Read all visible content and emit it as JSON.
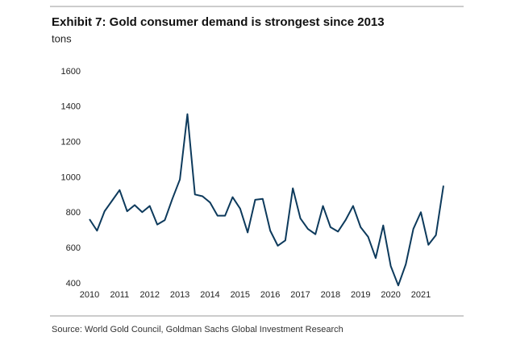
{
  "chart_data": {
    "type": "line",
    "title": "Exhibit 7: Gold consumer demand is strongest since 2013",
    "y_label": "tons",
    "source": "Source: World Gold Council, Goldman Sachs Global Investment Research",
    "x": [
      2010,
      2010.25,
      2010.5,
      2010.75,
      2011,
      2011.25,
      2011.5,
      2011.75,
      2012,
      2012.25,
      2012.5,
      2012.75,
      2013,
      2013.25,
      2013.5,
      2013.75,
      2014,
      2014.25,
      2014.5,
      2014.75,
      2015,
      2015.25,
      2015.5,
      2015.75,
      2016,
      2016.25,
      2016.5,
      2016.75,
      2017,
      2017.25,
      2017.5,
      2017.75,
      2018,
      2018.25,
      2018.5,
      2018.75,
      2019,
      2019.25,
      2019.5,
      2019.75,
      2020,
      2020.25,
      2020.5,
      2020.75,
      2021,
      2021.25,
      2021.5,
      2021.75
    ],
    "series": [
      {
        "name": "Gold consumer demand",
        "color": "#0d3a5c",
        "values": [
          765,
          700,
          810,
          870,
          930,
          810,
          845,
          805,
          840,
          735,
          760,
          880,
          990,
          1360,
          905,
          895,
          860,
          785,
          785,
          890,
          825,
          690,
          875,
          880,
          700,
          615,
          645,
          940,
          770,
          710,
          680,
          840,
          720,
          695,
          760,
          840,
          720,
          665,
          545,
          730,
          500,
          390,
          510,
          710,
          805,
          620,
          675,
          955
        ]
      }
    ],
    "xlim": [
      2010,
      2021.75
    ],
    "xticks": [
      2010,
      2011,
      2012,
      2013,
      2014,
      2015,
      2016,
      2017,
      2018,
      2019,
      2020,
      2021
    ],
    "ylim": [
      400,
      1600
    ],
    "yticks": [
      400,
      600,
      800,
      1000,
      1200,
      1400,
      1600
    ],
    "grid": false
  }
}
